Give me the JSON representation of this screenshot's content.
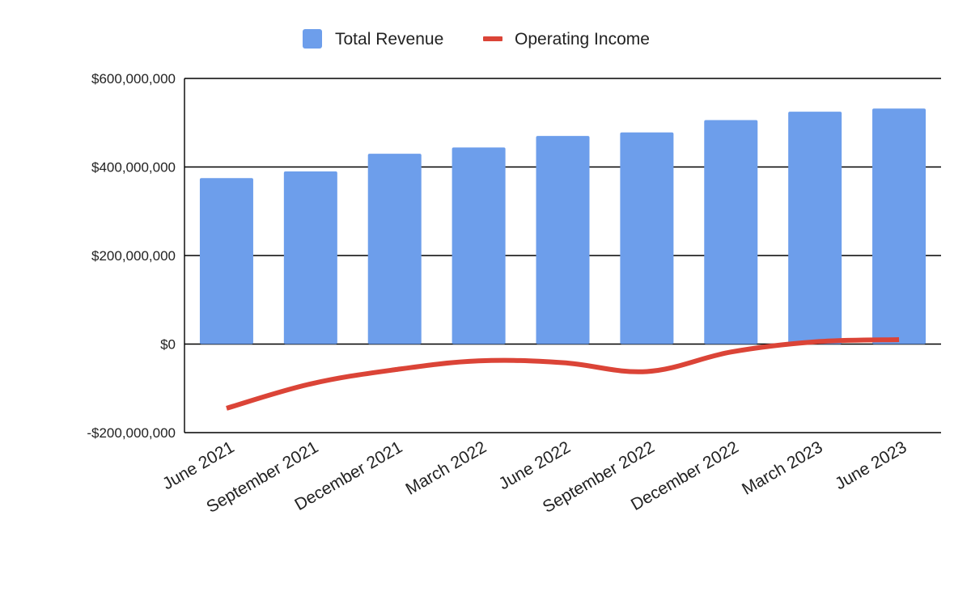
{
  "chart_data": {
    "type": "bar",
    "categories": [
      "June 2021",
      "September 2021",
      "December 2021",
      "March 2022",
      "June 2022",
      "September 2022",
      "December 2022",
      "March 2023",
      "June 2023"
    ],
    "series": [
      {
        "name": "Total Revenue",
        "type": "bar",
        "color": "#6d9eeb",
        "values": [
          375000000,
          390000000,
          430000000,
          444000000,
          470000000,
          478000000,
          506000000,
          525000000,
          532000000
        ]
      },
      {
        "name": "Operating Income",
        "type": "line",
        "smooth": true,
        "color": "#db4437",
        "values": [
          -145000000,
          -90000000,
          -58000000,
          -38000000,
          -42000000,
          -62000000,
          -18000000,
          5000000,
          10000000
        ]
      }
    ],
    "ylim": [
      -200000000,
      600000000
    ],
    "yticks": [
      -200000000,
      0,
      200000000,
      400000000,
      600000000
    ],
    "ytick_labels": [
      "-$200,000,000",
      "$0",
      "$200,000,000",
      "$400,000,000",
      "$600,000,000"
    ],
    "grid": true,
    "legend_position": "top",
    "title": "",
    "xlabel": "",
    "ylabel": ""
  }
}
